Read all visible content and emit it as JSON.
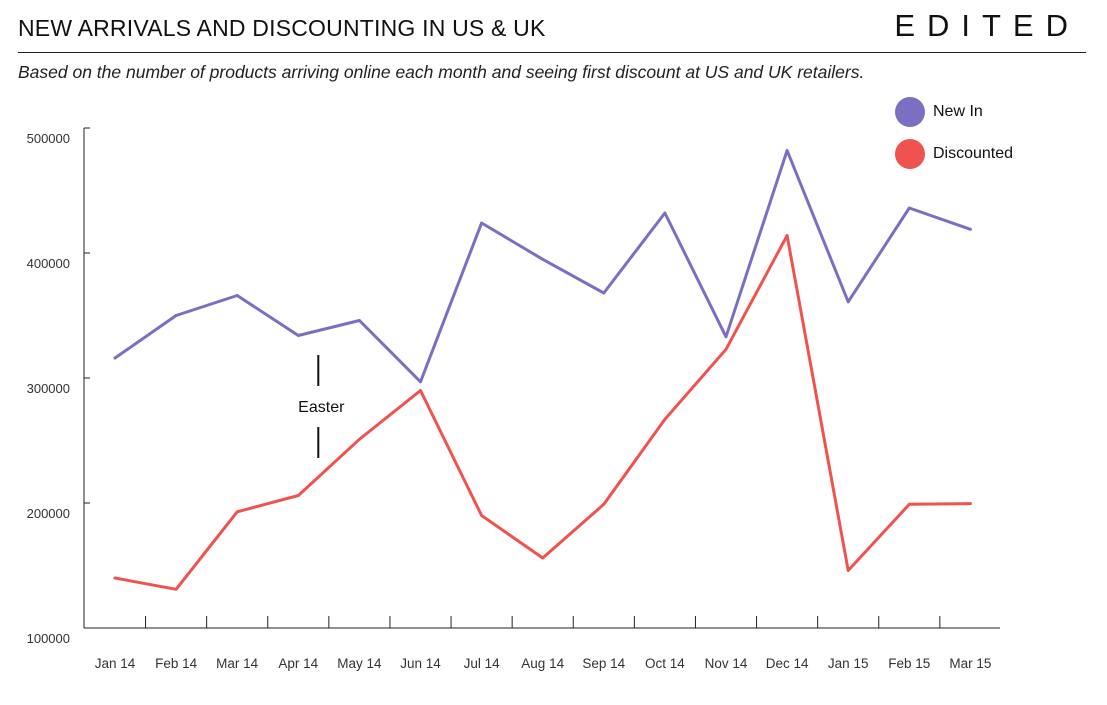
{
  "header": {
    "title": "NEW ARRIVALS AND DISCOUNTING IN US & UK",
    "brand": "EDITED",
    "subtitle": "Based on the number of products arriving online each month and seeing first discount at US and UK retailers."
  },
  "legend": {
    "items": [
      {
        "label": "New In",
        "color": "#7b6fc4"
      },
      {
        "label": "Discounted",
        "color": "#f0534f"
      }
    ]
  },
  "chart_data": {
    "type": "line",
    "categories": [
      "Jan 14",
      "Feb 14",
      "Mar 14",
      "Apr 14",
      "May 14",
      "Jun 14",
      "Jul 14",
      "Aug 14",
      "Sep 14",
      "Oct 14",
      "Nov 14",
      "Dec 14",
      "Jan 15",
      "Feb 15",
      "Mar 15"
    ],
    "series": [
      {
        "name": "New In",
        "color": "#7b6fc4",
        "values": [
          316000,
          350000,
          366000,
          334000,
          346000,
          297000,
          424000,
          395000,
          368000,
          432000,
          333000,
          482000,
          361000,
          436000,
          419000
        ]
      },
      {
        "name": "Discounted",
        "color": "#f0534f",
        "values": [
          140000,
          131000,
          193000,
          206000,
          251000,
          290000,
          190000,
          156000,
          199000,
          267000,
          323000,
          414000,
          146000,
          199000,
          199500
        ]
      }
    ],
    "yticks": [
      "500000",
      "400000",
      "300000",
      "200000",
      "100000"
    ],
    "ylim": [
      100000,
      500000
    ],
    "annotation": {
      "text": "Easter",
      "category": "Apr 14"
    },
    "grid": false,
    "legend_position": "top-right"
  }
}
